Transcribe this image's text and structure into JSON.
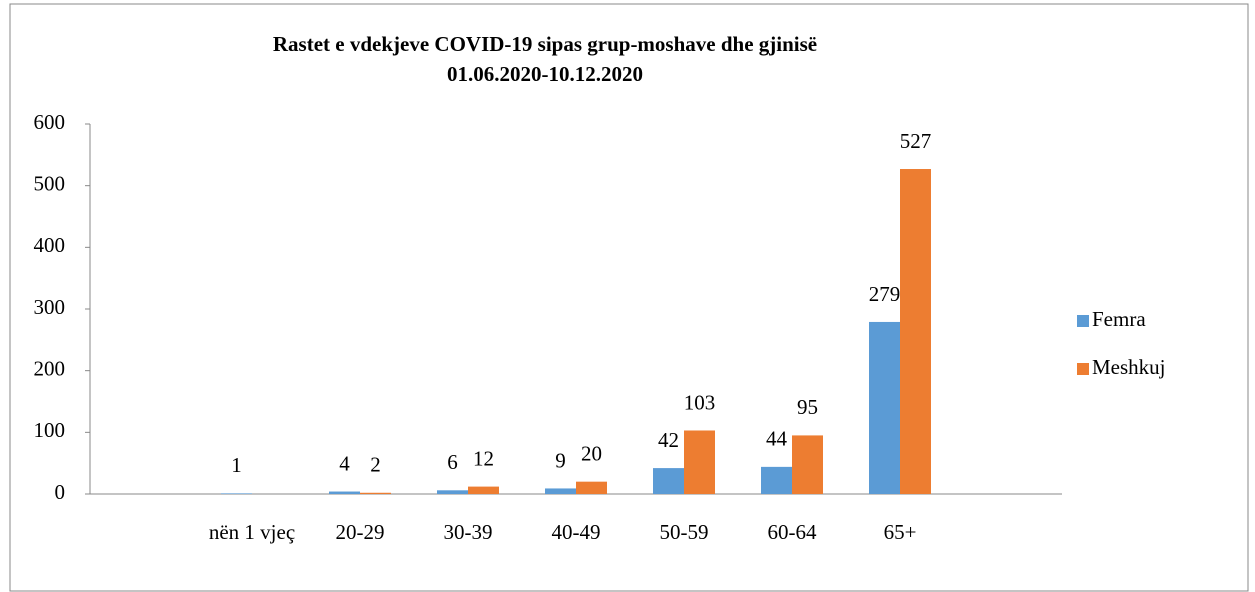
{
  "chart_data": {
    "type": "bar",
    "title": "Rastet e vdekjeve COVID-19 sipas grup-moshave dhe gjinisë",
    "subtitle": "01.06.2020-10.12.2020",
    "categories": [
      null,
      "nën 1 vjeç",
      "20-29",
      "30-39",
      "40-49",
      "50-59",
      "60-64",
      "65+",
      null
    ],
    "series": [
      {
        "name": "Femra",
        "color": "#5b9bd5",
        "values": [
          null,
          1,
          4,
          6,
          9,
          42,
          44,
          279,
          null
        ]
      },
      {
        "name": "Meshkuj",
        "color": "#ed7d31",
        "values": [
          null,
          null,
          2,
          12,
          20,
          103,
          95,
          527,
          null
        ]
      }
    ],
    "ylim": [
      0,
      600
    ],
    "yticks": [
      0,
      100,
      200,
      300,
      400,
      500,
      600
    ],
    "grid": false,
    "legend": "right"
  }
}
